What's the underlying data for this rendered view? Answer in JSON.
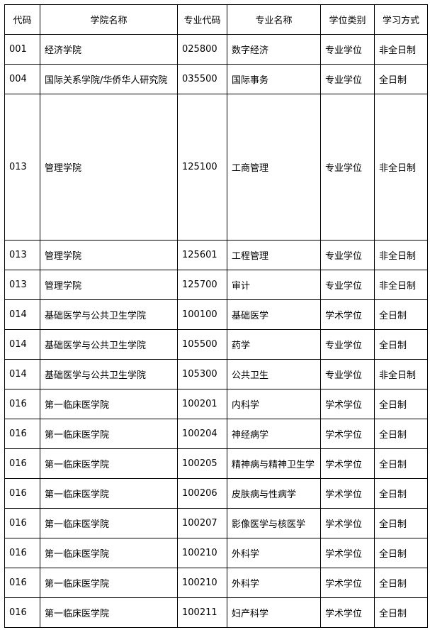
{
  "table": {
    "header": [
      "代码",
      "学院名称",
      "专业代码",
      "专业名称",
      "学位类别",
      "学习方式"
    ],
    "rows": [
      [
        "001",
        "经济学院",
        "025800",
        "数字经济",
        "专业学位",
        "非全日制"
      ],
      [
        "004",
        "国际关系学院/华侨华人研究院",
        "035500",
        "国际事务",
        "专业学位",
        "全日制"
      ],
      [
        "013",
        "管理学院",
        "125100",
        "工商管理",
        "专业学位",
        "非全日制"
      ],
      [
        "013",
        "管理学院",
        "125601",
        "工程管理",
        "专业学位",
        "非全日制"
      ],
      [
        "013",
        "管理学院",
        "125700",
        "审计",
        "专业学位",
        "非全日制"
      ],
      [
        "014",
        "基础医学与公共卫生学院",
        "100100",
        "基础医学",
        "学术学位",
        "全日制"
      ],
      [
        "014",
        "基础医学与公共卫生学院",
        "105500",
        "药学",
        "专业学位",
        "全日制"
      ],
      [
        "014",
        "基础医学与公共卫生学院",
        "105300",
        "公共卫生",
        "专业学位",
        "非全日制"
      ],
      [
        "016",
        "第一临床医学院",
        "100201",
        "内科学",
        "学术学位",
        "全日制"
      ],
      [
        "016",
        "第一临床医学院",
        "100204",
        "神经病学",
        "学术学位",
        "全日制"
      ],
      [
        "016",
        "第一临床医学院",
        "100205",
        "精神病与精神卫生学",
        "学术学位",
        "全日制"
      ],
      [
        "016",
        "第一临床医学院",
        "100206",
        "皮肤病与性病学",
        "学术学位",
        "全日制"
      ],
      [
        "016",
        "第一临床医学院",
        "100207",
        "影像医学与核医学",
        "学术学位",
        "全日制"
      ],
      [
        "016",
        "第一临床医学院",
        "100210",
        "外科学",
        "学术学位",
        "全日制"
      ],
      [
        "016",
        "第一临床医学院",
        "100210",
        "外科学",
        "学术学位",
        "全日制"
      ],
      [
        "016",
        "第一临床医学院",
        "100211",
        "妇产科学",
        "学术学位",
        "全日制"
      ]
    ]
  }
}
